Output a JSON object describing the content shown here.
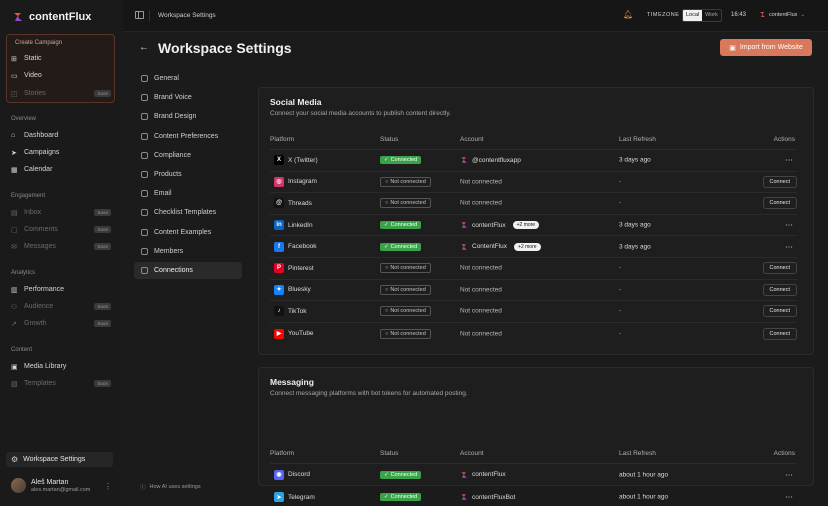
{
  "brand": {
    "name": "contentFlux"
  },
  "sidebar": {
    "create": {
      "title": "Create Campaign",
      "items": [
        {
          "label": "Static",
          "icon": "shapes-icon",
          "dim": false,
          "soon": ""
        },
        {
          "label": "Video",
          "icon": "video-icon",
          "dim": false,
          "soon": ""
        },
        {
          "label": "Stories",
          "icon": "stories-icon",
          "dim": true,
          "soon": "Soon"
        }
      ]
    },
    "sections": [
      {
        "label": "Overview",
        "items": [
          {
            "label": "Dashboard",
            "icon": "home-icon",
            "dim": false,
            "soon": ""
          },
          {
            "label": "Campaigns",
            "icon": "send-icon",
            "dim": false,
            "soon": ""
          },
          {
            "label": "Calendar",
            "icon": "calendar-icon",
            "dim": false,
            "soon": ""
          }
        ]
      },
      {
        "label": "Engagement",
        "items": [
          {
            "label": "Inbox",
            "icon": "inbox-icon",
            "dim": true,
            "soon": "Soon"
          },
          {
            "label": "Comments",
            "icon": "comment-icon",
            "dim": true,
            "soon": "Soon"
          },
          {
            "label": "Messages",
            "icon": "message-icon",
            "dim": true,
            "soon": "Soon"
          }
        ]
      },
      {
        "label": "Analytics",
        "items": [
          {
            "label": "Performance",
            "icon": "chart-icon",
            "dim": false,
            "soon": ""
          },
          {
            "label": "Audience",
            "icon": "users-icon",
            "dim": true,
            "soon": "Soon"
          },
          {
            "label": "Growth",
            "icon": "trend-icon",
            "dim": true,
            "soon": "Soon"
          }
        ]
      },
      {
        "label": "Content",
        "items": [
          {
            "label": "Media Library",
            "icon": "image-icon",
            "dim": false,
            "soon": ""
          },
          {
            "label": "Templates",
            "icon": "template-icon",
            "dim": true,
            "soon": "Soon"
          }
        ]
      }
    ],
    "workspace_button": "Workspace Settings",
    "user": {
      "name": "Aleš Martan",
      "email": "ales.martan@gmail.com"
    }
  },
  "topbar": {
    "breadcrumb": "Workspace Settings",
    "timezone_label": "TIMEZONE",
    "tz_options": [
      "Local",
      "Work"
    ],
    "tz_selected": "Local",
    "time": "16:43",
    "account": "contentFlux"
  },
  "page": {
    "title": "Workspace Settings",
    "import_button": "Import from Website"
  },
  "settings_nav": [
    {
      "label": "General",
      "icon": "globe-icon"
    },
    {
      "label": "Brand Voice",
      "icon": "megaphone-icon"
    },
    {
      "label": "Brand Design",
      "icon": "palette-icon"
    },
    {
      "label": "Content Preferences",
      "icon": "sliders-icon"
    },
    {
      "label": "Compliance",
      "icon": "shield-icon"
    },
    {
      "label": "Products",
      "icon": "box-icon"
    },
    {
      "label": "Email",
      "icon": "mail-icon"
    },
    {
      "label": "Checklist Templates",
      "icon": "checklist-icon"
    },
    {
      "label": "Content Examples",
      "icon": "document-icon"
    },
    {
      "label": "Members",
      "icon": "users-icon"
    },
    {
      "label": "Connections",
      "icon": "link-icon",
      "active": true
    }
  ],
  "ai_note": "How AI uses settings",
  "social": {
    "title": "Social Media",
    "description": "Connect your social media accounts to publish content directly.",
    "headers": {
      "platform": "Platform",
      "status": "Status",
      "account": "Account",
      "refresh": "Last Refresh",
      "actions": "Actions"
    },
    "rows": [
      {
        "platform": "X (Twitter)",
        "icon": "x-icon",
        "color": "#000000",
        "glyph": "X",
        "status": "Connected",
        "connected": true,
        "account": "@contentfluxapp",
        "more": "",
        "refresh": "3 days ago",
        "action": "⋯"
      },
      {
        "platform": "Instagram",
        "icon": "instagram-icon",
        "color": "#d6336c",
        "glyph": "◎",
        "status": "Not connected",
        "connected": false,
        "account": "Not connected",
        "more": "",
        "refresh": "-",
        "action": "Connect"
      },
      {
        "platform": "Threads",
        "icon": "threads-icon",
        "color": "#111111",
        "glyph": "@",
        "status": "Not connected",
        "connected": false,
        "account": "Not connected",
        "more": "",
        "refresh": "-",
        "action": "Connect"
      },
      {
        "platform": "LinkedIn",
        "icon": "linkedin-icon",
        "color": "#0a66c2",
        "glyph": "in",
        "status": "Connected",
        "connected": true,
        "account": "contentFlux",
        "more": "+2 more",
        "refresh": "3 days ago",
        "action": "⋯"
      },
      {
        "platform": "Facebook",
        "icon": "facebook-icon",
        "color": "#1877f2",
        "glyph": "f",
        "status": "Connected",
        "connected": true,
        "account": "ContentFlux",
        "more": "+2 more",
        "refresh": "3 days ago",
        "action": "⋯"
      },
      {
        "platform": "Pinterest",
        "icon": "pinterest-icon",
        "color": "#e60023",
        "glyph": "P",
        "status": "Not connected",
        "connected": false,
        "account": "Not connected",
        "more": "",
        "refresh": "-",
        "action": "Connect"
      },
      {
        "platform": "Bluesky",
        "icon": "bluesky-icon",
        "color": "#1185fe",
        "glyph": "✦",
        "status": "Not connected",
        "connected": false,
        "account": "Not connected",
        "more": "",
        "refresh": "-",
        "action": "Connect"
      },
      {
        "platform": "TikTok",
        "icon": "tiktok-icon",
        "color": "#111111",
        "glyph": "♪",
        "status": "Not connected",
        "connected": false,
        "account": "Not connected",
        "more": "",
        "refresh": "-",
        "action": "Connect"
      },
      {
        "platform": "YouTube",
        "icon": "youtube-icon",
        "color": "#ff0000",
        "glyph": "▶",
        "status": "Not connected",
        "connected": false,
        "account": "Not connected",
        "more": "",
        "refresh": "-",
        "action": "Connect"
      }
    ]
  },
  "messaging": {
    "title": "Messaging",
    "description": "Connect messaging platforms with bot tokens for automated posting.",
    "headers": {
      "platform": "Platform",
      "status": "Status",
      "account": "Account",
      "refresh": "Last Refresh",
      "actions": "Actions"
    },
    "rows": [
      {
        "platform": "Discord",
        "icon": "discord-icon",
        "color": "#5865f2",
        "glyph": "◉",
        "status": "Connected",
        "connected": true,
        "account": "contentFlux",
        "more": "",
        "refresh": "about 1 hour ago",
        "action": "⋯"
      },
      {
        "platform": "Telegram",
        "icon": "telegram-icon",
        "color": "#2aa3e0",
        "glyph": "➤",
        "status": "Connected",
        "connected": true,
        "account": "contentFluxBot",
        "more": "",
        "refresh": "about 1 hour ago",
        "action": "⋯"
      }
    ]
  },
  "colors": {
    "accent": "#d9785a",
    "connected": "#3aa34a",
    "background": "#161616"
  }
}
